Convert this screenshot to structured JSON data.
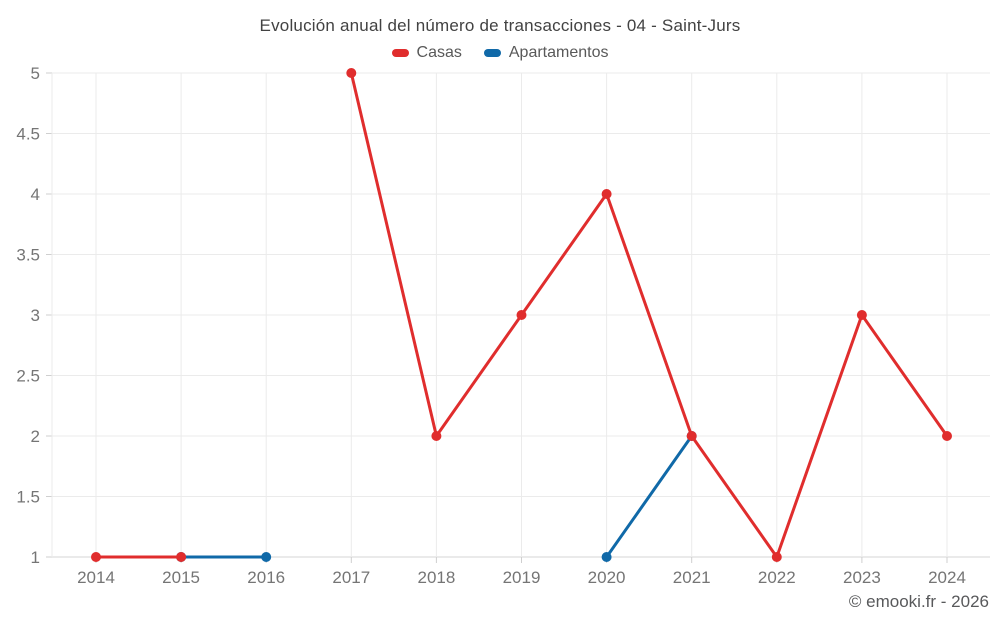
{
  "title": "Evolución anual del número de transacciones - 04 - Saint-Jurs",
  "footer": "© emooki.fr - 2026",
  "colors": {
    "casas": "#e02d2d",
    "apartamentos": "#1069a8",
    "gridline": "#ebebeb",
    "baseline": "#d6d6d6",
    "tick": "#cfcfcf",
    "axis_text": "#757575",
    "title_text": "#424242",
    "legend_text": "#595959",
    "footer_text": "#58595b",
    "background": "#ffffff"
  },
  "chart_data": {
    "type": "line",
    "title": "Evolución anual del número de transacciones - 04 - Saint-Jurs",
    "x": [
      2014,
      2015,
      2016,
      2017,
      2018,
      2019,
      2020,
      2021,
      2022,
      2023,
      2024
    ],
    "series": [
      {
        "name": "Casas",
        "color": "#e02d2d",
        "values": [
          1,
          1,
          null,
          5,
          2,
          3,
          4,
          2,
          1,
          3,
          2
        ]
      },
      {
        "name": "Apartamentos",
        "color": "#1069a8",
        "values": [
          null,
          1,
          1,
          null,
          null,
          null,
          1,
          2,
          null,
          null,
          null
        ]
      }
    ],
    "xlabel": "",
    "ylabel": "",
    "ylim": [
      1,
      5
    ],
    "ytick_step": 0.5,
    "yticks": [
      1,
      1.5,
      2,
      2.5,
      3,
      3.5,
      4,
      4.5,
      5
    ],
    "grid": true,
    "legend_position": "top",
    "marker_radius": 5,
    "line_width": 3
  }
}
